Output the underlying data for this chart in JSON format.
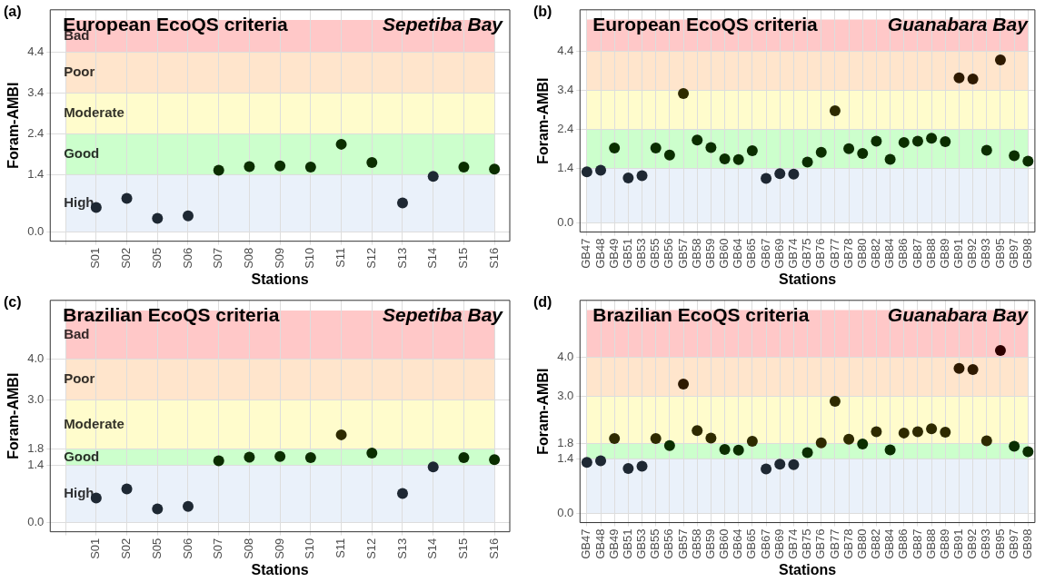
{
  "chart_data": [
    {
      "type": "scatter",
      "title": "European EcoQS criteria",
      "subtitle": "Sepetiba Bay",
      "xlabel": "Stations",
      "ylabel": "Foram-AMBI",
      "annotations": [
        "(a)"
      ],
      "grid": true,
      "legend": false,
      "marker": "circle",
      "categories": [
        null,
        "S01",
        "S02",
        "S05",
        "S06",
        "S07",
        "S08",
        "S09",
        "S10",
        "S11",
        "S12",
        "S13",
        "S14",
        "S15",
        "S16"
      ],
      "ylim": [
        -0.23,
        5.45
      ],
      "yticks": [
        {
          "value": 0,
          "label": "0.0"
        },
        1.4,
        2.4,
        3.4,
        4.4
      ],
      "bands": [
        {
          "axis": "y",
          "from": 0,
          "to": 1.4,
          "label": "High",
          "color": "#eaf1fa"
        },
        {
          "axis": "y",
          "from": 1.4,
          "to": 2.4,
          "label": "Good",
          "color": "#ccffcc"
        },
        {
          "axis": "y",
          "from": 2.4,
          "to": 3.4,
          "label": "Moderate",
          "color": "#fffccc"
        },
        {
          "axis": "y",
          "from": 3.4,
          "to": 4.4,
          "label": "Poor",
          "color": "#ffe5cc"
        },
        {
          "axis": "y",
          "from": 4.4,
          "to": 5.2,
          "label": "Bad",
          "color": "#ffc8c8"
        }
      ],
      "series": [
        {
          "values": [
            null,
            0.6,
            0.82,
            0.33,
            0.39,
            1.51,
            1.6,
            1.62,
            1.59,
            2.15,
            1.7,
            0.71,
            1.36,
            1.59,
            1.54
          ],
          "colors": [
            "#1e2833",
            "#1e2833",
            "#1e2833",
            "#1e2833",
            "#1e2833",
            "#0b2e00",
            "#0b2e00",
            "#0b2e00",
            "#0b2e00",
            "#0b2e00",
            "#0b2e00",
            "#1e2833",
            "#1e2833",
            "#0b2e00",
            "#0b2e00"
          ]
        }
      ]
    },
    {
      "type": "scatter",
      "title": "European EcoQS criteria",
      "subtitle": "Guanabara Bay",
      "xlabel": "Stations",
      "ylabel": "Foram-AMBI",
      "annotations": [
        "(b)"
      ],
      "grid": true,
      "legend": false,
      "marker": "circle",
      "categories": [
        "GB47",
        "GB48",
        "GB49",
        "GB51",
        "GB53",
        "GB55",
        "GB56",
        "GB57",
        "GB58",
        "GB59",
        "GB60",
        "GB64",
        "GB65",
        "GB67",
        "GB69",
        "GB74",
        "GB75",
        "GB76",
        "GB77",
        "GB78",
        "GB80",
        "GB82",
        "GB84",
        "GB86",
        "GB87",
        "GB88",
        "GB89",
        "GB91",
        "GB92",
        "GB93",
        "GB95",
        "GB97",
        "GB98"
      ],
      "ylim": [
        -0.23,
        5.45
      ],
      "yticks": [
        {
          "value": 0,
          "label": "0.0"
        },
        1.4,
        2.4,
        3.4,
        4.4
      ],
      "bands": [
        {
          "axis": "y",
          "from": 0,
          "to": 1.4,
          "color": "#eaf1fa"
        },
        {
          "axis": "y",
          "from": 1.4,
          "to": 2.4,
          "color": "#ccffcc"
        },
        {
          "axis": "y",
          "from": 2.4,
          "to": 3.4,
          "color": "#fffccc"
        },
        {
          "axis": "y",
          "from": 3.4,
          "to": 4.4,
          "color": "#ffe5cc"
        },
        {
          "axis": "y",
          "from": 4.4,
          "to": 5.2,
          "color": "#ffc8c8"
        }
      ],
      "series": [
        {
          "values": [
            1.31,
            1.35,
            1.92,
            1.15,
            1.21,
            1.92,
            1.74,
            3.31,
            2.12,
            1.93,
            1.64,
            1.62,
            1.85,
            1.14,
            1.26,
            1.25,
            1.56,
            1.81,
            2.87,
            1.9,
            1.78,
            2.09,
            1.63,
            2.06,
            2.09,
            2.17,
            2.08,
            3.71,
            3.68,
            1.86,
            4.17,
            1.72,
            1.58
          ],
          "colors": [
            "#1e2833",
            "#1e2833",
            "#0b2e00",
            "#1e2833",
            "#1e2833",
            "#0b2e00",
            "#0b2e00",
            "#2e2a00",
            "#0b2e00",
            "#0b2e00",
            "#0b2e00",
            "#0b2e00",
            "#0b2e00",
            "#1e2833",
            "#1e2833",
            "#1e2833",
            "#0b2e00",
            "#0b2e00",
            "#2e2a00",
            "#0b2e00",
            "#0b2e00",
            "#0b2e00",
            "#0b2e00",
            "#0b2e00",
            "#0b2e00",
            "#0b2e00",
            "#0b2e00",
            "#2e1a00",
            "#2e1a00",
            "#0b2e00",
            "#2e1a00",
            "#0b2e00",
            "#0b2e00"
          ]
        }
      ]
    },
    {
      "type": "scatter",
      "title": "Brazilian EcoQS criteria",
      "subtitle": "Sepetiba Bay",
      "xlabel": "Stations",
      "ylabel": "Foram-AMBI",
      "annotations": [
        "(c)"
      ],
      "grid": true,
      "legend": false,
      "marker": "circle",
      "categories": [
        null,
        "S01",
        "S02",
        "S05",
        "S06",
        "S07",
        "S08",
        "S09",
        "S10",
        "S11",
        "S12",
        "S13",
        "S14",
        "S15",
        "S16"
      ],
      "ylim": [
        -0.23,
        5.45
      ],
      "yticks": [
        {
          "value": 0,
          "label": "0.0"
        },
        1.4,
        1.8,
        {
          "value": 3,
          "label": "3.0"
        },
        {
          "value": 4,
          "label": "4.0"
        }
      ],
      "bands": [
        {
          "axis": "y",
          "from": 0,
          "to": 1.4,
          "label": "High",
          "color": "#eaf1fa"
        },
        {
          "axis": "y",
          "from": 1.4,
          "to": 1.8,
          "label": "Good",
          "color": "#ccffcc"
        },
        {
          "axis": "y",
          "from": 1.8,
          "to": 3,
          "label": "Moderate",
          "color": "#fffccc"
        },
        {
          "axis": "y",
          "from": 3,
          "to": 4,
          "label": "Poor",
          "color": "#ffe5cc"
        },
        {
          "axis": "y",
          "from": 4,
          "to": 5.2,
          "label": "Bad",
          "color": "#ffc8c8"
        }
      ],
      "series": [
        {
          "values": [
            null,
            0.6,
            0.82,
            0.33,
            0.39,
            1.51,
            1.6,
            1.62,
            1.59,
            2.15,
            1.7,
            0.71,
            1.36,
            1.59,
            1.54
          ],
          "colors": [
            "#1e2833",
            "#1e2833",
            "#1e2833",
            "#1e2833",
            "#1e2833",
            "#0b2e00",
            "#0b2e00",
            "#0b2e00",
            "#0b2e00",
            "#2e2a00",
            "#0b2e00",
            "#1e2833",
            "#1e2833",
            "#0b2e00",
            "#0b2e00"
          ]
        }
      ]
    },
    {
      "type": "scatter",
      "title": "Brazilian EcoQS criteria",
      "subtitle": "Guanabara Bay",
      "xlabel": "Stations",
      "ylabel": "Foram-AMBI",
      "annotations": [
        "(d)"
      ],
      "grid": true,
      "legend": false,
      "marker": "circle",
      "categories": [
        "GB47",
        "GB48",
        "GB49",
        "GB51",
        "GB53",
        "GB55",
        "GB56",
        "GB57",
        "GB58",
        "GB59",
        "GB60",
        "GB64",
        "GB65",
        "GB67",
        "GB69",
        "GB74",
        "GB75",
        "GB76",
        "GB77",
        "GB78",
        "GB80",
        "GB82",
        "GB84",
        "GB86",
        "GB87",
        "GB88",
        "GB89",
        "GB91",
        "GB92",
        "GB93",
        "GB95",
        "GB97",
        "GB98"
      ],
      "ylim": [
        -0.23,
        5.45
      ],
      "yticks": [
        {
          "value": 0,
          "label": "0.0"
        },
        1.4,
        1.8,
        {
          "value": 3,
          "label": "3.0"
        },
        {
          "value": 4,
          "label": "4.0"
        }
      ],
      "bands": [
        {
          "axis": "y",
          "from": 0,
          "to": 1.4,
          "color": "#eaf1fa"
        },
        {
          "axis": "y",
          "from": 1.4,
          "to": 1.8,
          "color": "#ccffcc"
        },
        {
          "axis": "y",
          "from": 1.8,
          "to": 3,
          "color": "#fffccc"
        },
        {
          "axis": "y",
          "from": 3,
          "to": 4,
          "color": "#ffe5cc"
        },
        {
          "axis": "y",
          "from": 4,
          "to": 5.2,
          "color": "#ffc8c8"
        }
      ],
      "series": [
        {
          "values": [
            1.31,
            1.35,
            1.92,
            1.15,
            1.21,
            1.92,
            1.74,
            3.31,
            2.12,
            1.93,
            1.64,
            1.62,
            1.85,
            1.14,
            1.26,
            1.25,
            1.56,
            1.81,
            2.87,
            1.9,
            1.78,
            2.09,
            1.63,
            2.06,
            2.09,
            2.17,
            2.08,
            3.71,
            3.68,
            1.86,
            4.17,
            1.72,
            1.58
          ],
          "colors": [
            "#1e2833",
            "#1e2833",
            "#2e2a00",
            "#1e2833",
            "#1e2833",
            "#2e2a00",
            "#0b2e00",
            "#2e1a00",
            "#2e2a00",
            "#2e2a00",
            "#0b2e00",
            "#0b2e00",
            "#2e2a00",
            "#1e2833",
            "#1e2833",
            "#1e2833",
            "#0b2e00",
            "#2e2a00",
            "#2e2a00",
            "#2e2a00",
            "#0b2e00",
            "#2e2a00",
            "#0b2e00",
            "#2e2a00",
            "#2e2a00",
            "#2e2a00",
            "#2e2a00",
            "#2e1a00",
            "#2e1a00",
            "#2e2a00",
            "#2e0000",
            "#0b2e00",
            "#0b2e00"
          ]
        }
      ]
    }
  ]
}
